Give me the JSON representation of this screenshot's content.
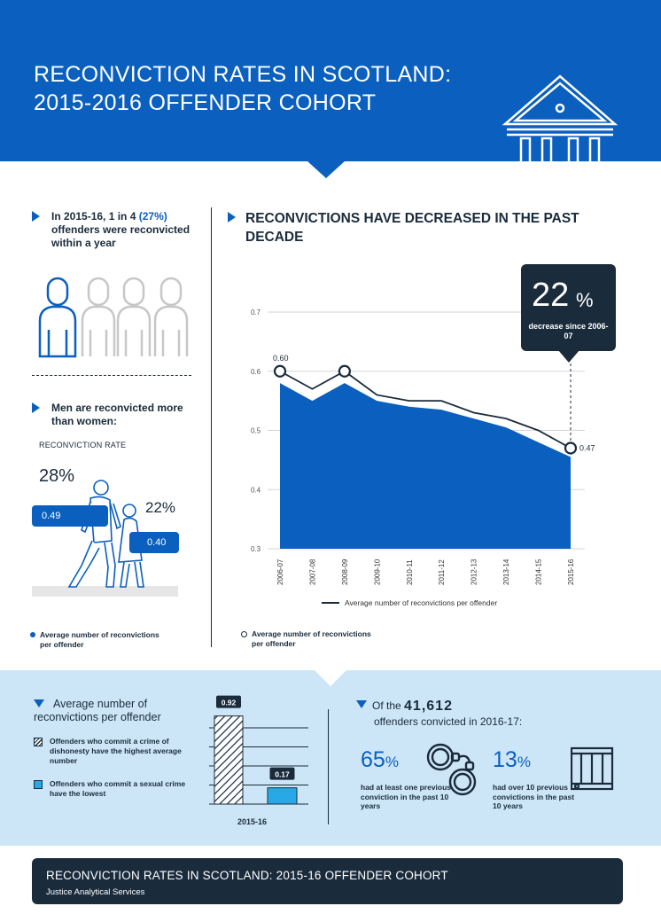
{
  "header": {
    "title_line1": "RECONVICTION RATES IN SCOTLAND:",
    "title_line2": "2015-2016 OFFENDER COHORT",
    "icon": "courthouse-icon"
  },
  "stat_one_in_four": {
    "prefix": "In 2015-16, 1 in 4 ",
    "pct": "(27%)",
    "suffix": " offenders were reconvicted within a year",
    "icon": "people-icon"
  },
  "gender": {
    "heading": "Men are reconvicted more than women:",
    "rate_label": "RECONVICTION RATE",
    "men_pct": "28%",
    "women_pct": "22%",
    "men_avg": "0.49",
    "women_avg": "0.40",
    "legend": "Average number of reconvictions per offender"
  },
  "trend": {
    "heading": "RECONVICTIONS HAVE DECREASED  IN THE PAST DECADE",
    "callout_value": "22",
    "callout_pct": "%",
    "callout_text": "decrease since 2006-07",
    "legend_line": "Average number of reconvictions per offender",
    "legend_marker": "Average number of reconvictions per offender"
  },
  "chart_data": [
    {
      "type": "area",
      "x": [
        "2006-07",
        "2007-08",
        "2008-09",
        "2009-10",
        "2010-11",
        "2011-12",
        "2012-13",
        "2013-14",
        "2014-15",
        "2015-16"
      ],
      "series": [
        {
          "name": "Average number of reconvictions per offender",
          "values": [
            0.6,
            0.57,
            0.6,
            0.56,
            0.55,
            0.55,
            0.53,
            0.52,
            0.5,
            0.47
          ]
        },
        {
          "name": "",
          "values": [
            0.58,
            0.55,
            0.58,
            0.55,
            0.54,
            0.535,
            0.52,
            0.505,
            0.48,
            0.455
          ]
        }
      ],
      "ylim": [
        0.3,
        0.7
      ],
      "yticks": [
        "0.3",
        "0.4",
        "0.5",
        "0.6",
        "0.7"
      ],
      "labels": {
        "start": "0.60",
        "end": "0.47"
      },
      "grid": true
    },
    {
      "type": "bar",
      "categories": [
        "2015-16"
      ],
      "series": [
        {
          "name": "Offenders who commit a crime of dishonesty have the highest average number",
          "values": [
            0.92
          ]
        },
        {
          "name": "Offenders who commit a sexual crime have the lowest",
          "values": [
            0.17
          ]
        }
      ],
      "labels": [
        "0.92",
        "0.17"
      ]
    }
  ],
  "bars": {
    "heading": "Average number of reconvictions per offender",
    "legend_high": "Offenders who commit a crime of dishonesty have the highest average number",
    "legend_low": "Offenders who commit a sexual crime have the lowest",
    "year": "2015-16",
    "colors": {
      "hatch": "#1a2b3c",
      "low": "#29a8e8"
    }
  },
  "convictions": {
    "line1_prefix": "Of the ",
    "total": "41,612",
    "line2": "offenders  convicted in 2016-17:",
    "stat_a_value": "65",
    "stat_a_pct": "%",
    "stat_a_desc": "had at least one previous conviction in the past 10 years",
    "stat_b_value": "13",
    "stat_b_pct": "%",
    "stat_b_desc": "had over 10 previous convictions in the past 10 years"
  },
  "footer": {
    "title": "RECONVICTION RATES IN SCOTLAND: 2015-16 OFFENDER COHORT",
    "subtitle": "Justice Analytical Services"
  },
  "colors": {
    "brand": "#0a5fbf",
    "dark": "#1a2b3c",
    "light_band": "#cde6f7",
    "accent": "#29a8e8"
  }
}
